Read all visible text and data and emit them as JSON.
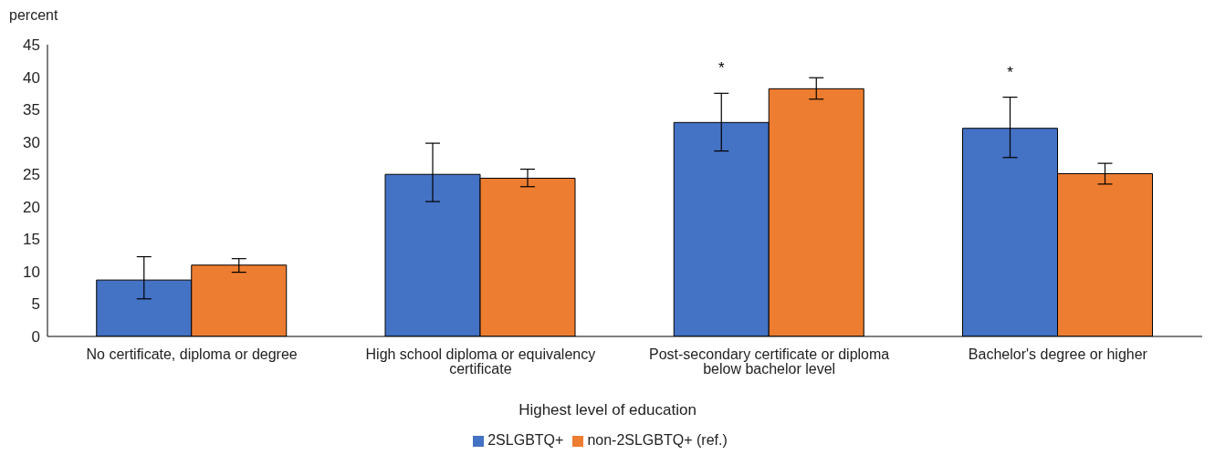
{
  "chart_data": {
    "type": "bar",
    "ylabel": "percent",
    "xlabel": "Highest level of education",
    "categories": [
      "No certificate, diploma or degree",
      "High school diploma or equivalency certificate",
      "Post-secondary certificate or diploma below bachelor level",
      "Bachelor's degree or higher"
    ],
    "series": [
      {
        "name": "2SLGBTQ+",
        "color": "#4472c4",
        "values": [
          8.7,
          25.0,
          33.0,
          32.1
        ],
        "value_labels": [
          null,
          null,
          "*",
          "*"
        ],
        "errors": [
          [
            5.8,
            12.3
          ],
          [
            20.8,
            29.8
          ],
          [
            28.6,
            37.5
          ],
          [
            27.6,
            36.9
          ]
        ]
      },
      {
        "name": "non-2SLGBTQ+ (ref.)",
        "color": "#ed7d31",
        "values": [
          11.0,
          24.4,
          38.2,
          25.1
        ],
        "errors": [
          [
            9.9,
            12.0
          ],
          [
            23.1,
            25.8
          ],
          [
            36.6,
            39.9
          ],
          [
            23.5,
            26.7
          ]
        ]
      }
    ],
    "ylim": [
      0,
      45
    ],
    "yticks": [
      0,
      5,
      10,
      15,
      20,
      25,
      30,
      35,
      40,
      45
    ],
    "grid": false,
    "legend": "bottom"
  }
}
